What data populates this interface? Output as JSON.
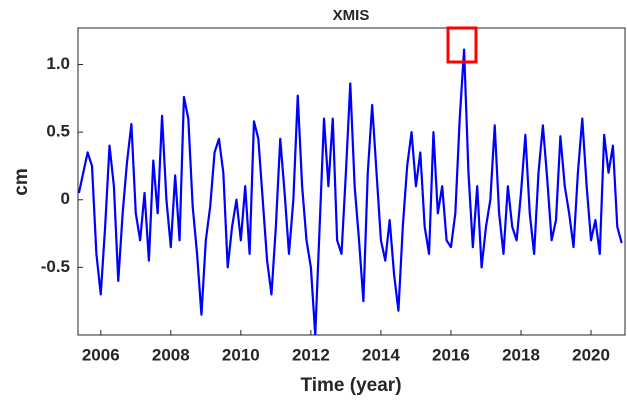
{
  "chart_data": {
    "type": "line",
    "title": "XMIS",
    "xlabel": "Time (year)",
    "ylabel": "cm",
    "x": [
      2005.375,
      2005.5,
      2005.625,
      2005.75,
      2005.875,
      2006,
      2006.125,
      2006.25,
      2006.375,
      2006.5,
      2006.625,
      2006.75,
      2006.875,
      2007,
      2007.125,
      2007.25,
      2007.375,
      2007.5,
      2007.625,
      2007.75,
      2007.875,
      2008,
      2008.125,
      2008.25,
      2008.375,
      2008.5,
      2008.625,
      2008.75,
      2008.875,
      2009,
      2009.125,
      2009.25,
      2009.375,
      2009.5,
      2009.625,
      2009.75,
      2009.875,
      2010,
      2010.125,
      2010.25,
      2010.375,
      2010.5,
      2010.625,
      2010.75,
      2010.875,
      2011,
      2011.125,
      2011.25,
      2011.375,
      2011.5,
      2011.625,
      2011.75,
      2011.875,
      2012,
      2012.125,
      2012.25,
      2012.375,
      2012.5,
      2012.625,
      2012.75,
      2012.875,
      2013,
      2013.125,
      2013.25,
      2013.375,
      2013.5,
      2013.625,
      2013.75,
      2013.875,
      2014,
      2014.125,
      2014.25,
      2014.375,
      2014.5,
      2014.625,
      2014.75,
      2014.875,
      2015,
      2015.125,
      2015.25,
      2015.375,
      2015.5,
      2015.625,
      2015.75,
      2015.875,
      2016,
      2016.125,
      2016.25,
      2016.375,
      2016.5,
      2016.625,
      2016.75,
      2016.875,
      2017,
      2017.125,
      2017.25,
      2017.375,
      2017.5,
      2017.625,
      2017.75,
      2017.875,
      2018,
      2018.125,
      2018.25,
      2018.375,
      2018.5,
      2018.625,
      2018.75,
      2018.875,
      2019,
      2019.125,
      2019.25,
      2019.375,
      2019.5,
      2019.625,
      2019.75,
      2019.875,
      2020,
      2020.125,
      2020.25,
      2020.375,
      2020.5,
      2020.625,
      2020.75,
      2020.875
    ],
    "series": [
      {
        "color": "#0000ff",
        "values": [
          0.05,
          0.2,
          0.35,
          0.25,
          -0.4,
          -0.7,
          -0.2,
          0.4,
          0.1,
          -0.6,
          -0.1,
          0.28,
          0.56,
          -0.1,
          -0.3,
          0.05,
          -0.45,
          0.29,
          -0.1,
          0.62,
          0.0,
          -0.35,
          0.18,
          -0.3,
          0.76,
          0.6,
          -0.05,
          -0.4,
          -0.85,
          -0.3,
          -0.05,
          0.35,
          0.45,
          0.2,
          -0.5,
          -0.2,
          0.0,
          -0.3,
          0.1,
          -0.4,
          0.58,
          0.45,
          0.0,
          -0.45,
          -0.7,
          -0.2,
          0.45,
          0.05,
          -0.4,
          0.0,
          0.77,
          0.1,
          -0.3,
          -0.5,
          -1.0,
          -0.2,
          0.6,
          0.1,
          0.6,
          -0.3,
          -0.4,
          0.2,
          0.86,
          0.1,
          -0.3,
          -0.75,
          0.2,
          0.7,
          0.2,
          -0.3,
          -0.45,
          -0.15,
          -0.55,
          -0.82,
          -0.2,
          0.25,
          0.5,
          0.1,
          0.35,
          -0.2,
          -0.4,
          0.5,
          -0.1,
          0.1,
          -0.3,
          -0.35,
          -0.1,
          0.6,
          1.11,
          0.2,
          -0.35,
          0.1,
          -0.5,
          -0.2,
          0.0,
          0.55,
          -0.1,
          -0.4,
          0.1,
          -0.2,
          -0.3,
          0.05,
          0.48,
          -0.1,
          -0.4,
          0.2,
          0.55,
          0.15,
          -0.3,
          -0.15,
          0.47,
          0.1,
          -0.1,
          -0.35,
          0.2,
          0.6,
          0.1,
          -0.3,
          -0.15,
          -0.4,
          0.48,
          0.2,
          0.4,
          -0.2,
          -0.32
        ]
      }
    ],
    "xlim": [
      2005.35,
      2020.97
    ],
    "xticks": [
      2006,
      2008,
      2010,
      2012,
      2014,
      2016,
      2018,
      2020
    ],
    "ylim": [
      -1.0,
      1.27
    ],
    "yticks": [
      -0.5,
      0,
      0.5,
      {
        "value": 1,
        "label": "1.0"
      }
    ]
  }
}
